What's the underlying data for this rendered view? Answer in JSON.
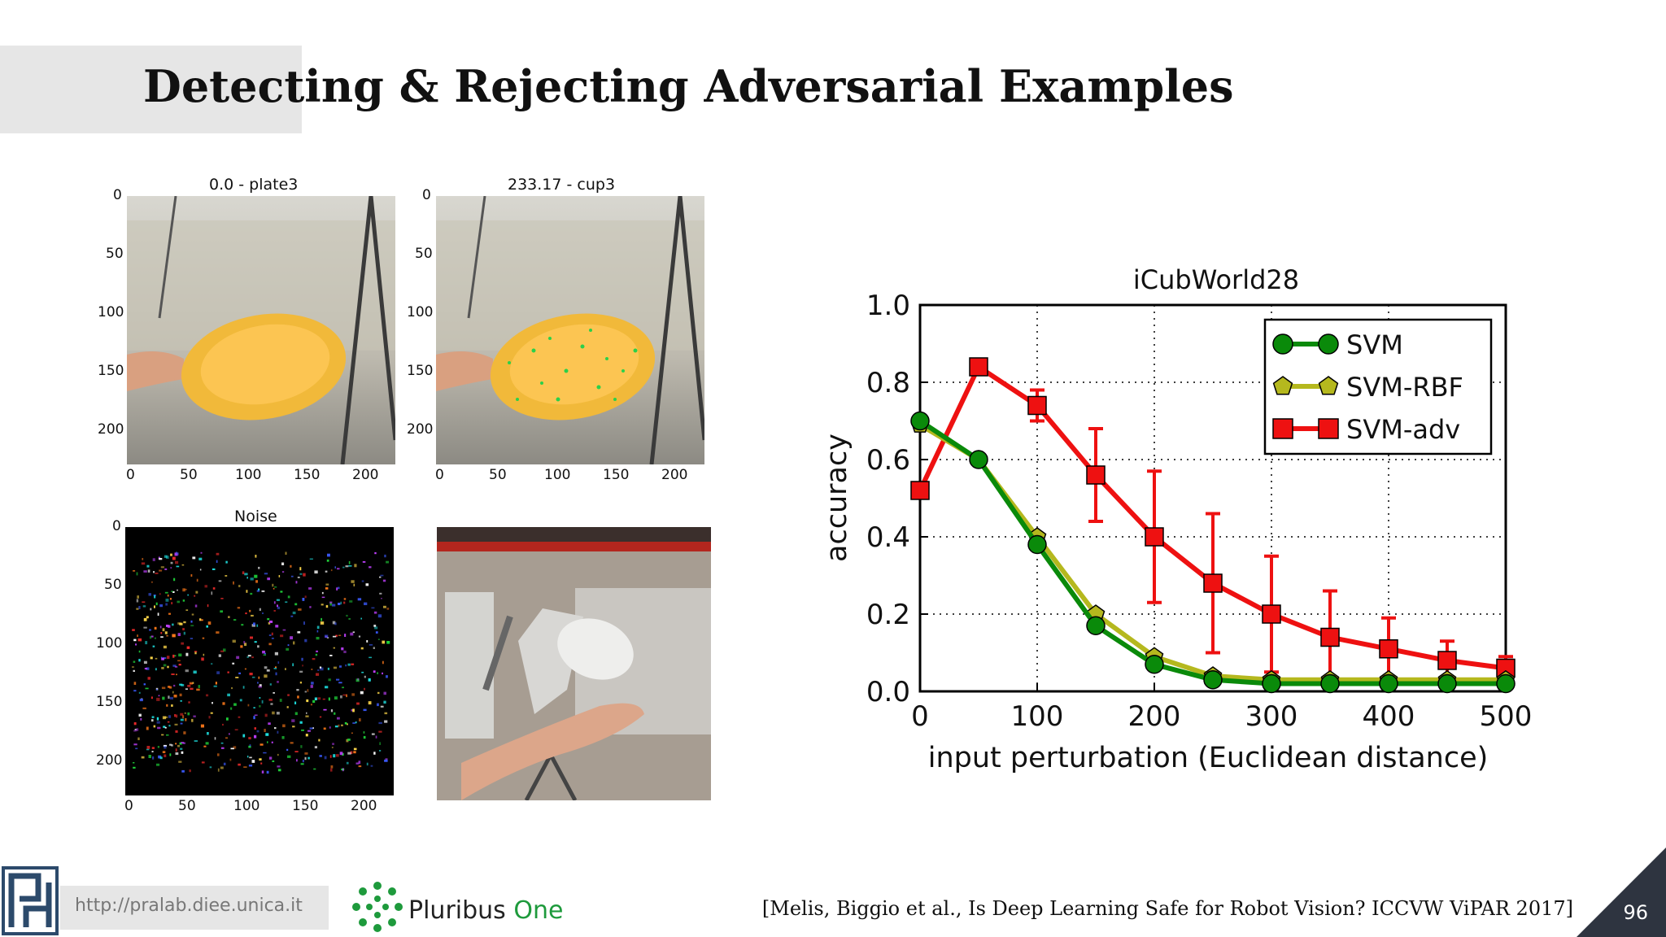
{
  "slide": {
    "title": "Detecting & Rejecting Adversarial Examples",
    "page_number": "96",
    "citation": "[Melis, Biggio et al., Is Deep Learning Safe for Robot Vision? ICCVW ViPAR 2017]",
    "footer_url": "http://pralab.diee.unica.it",
    "brand_name": "Pluribus ",
    "brand_accent": "One"
  },
  "images": {
    "original": {
      "label": "0.0 - plate3"
    },
    "adversarial": {
      "label": "233.17 - cup3"
    },
    "noise": {
      "label": "Noise"
    },
    "axis_ticks": [
      "0",
      "50",
      "100",
      "150",
      "200"
    ]
  },
  "chart_data": {
    "type": "line",
    "title": "iCubWorld28",
    "xlabel": "input perturbation (Euclidean distance)",
    "ylabel": "accuracy",
    "xlim": [
      0,
      500
    ],
    "ylim": [
      0,
      1.0
    ],
    "x_ticks": [
      0,
      100,
      200,
      300,
      400,
      500
    ],
    "y_ticks": [
      0.0,
      0.2,
      0.4,
      0.6,
      0.8,
      1.0
    ],
    "y_tick_labels": [
      "0.0",
      "0.2",
      "0.4",
      "0.6",
      "0.8",
      "1.0"
    ],
    "grid": true,
    "legend_position": "top-right",
    "x": [
      0,
      50,
      100,
      150,
      200,
      250,
      300,
      350,
      400,
      450,
      500
    ],
    "series": [
      {
        "name": "SVM",
        "color": "#0a8a0a",
        "marker": "circle",
        "values": [
          0.7,
          0.6,
          0.38,
          0.17,
          0.07,
          0.03,
          0.02,
          0.02,
          0.02,
          0.02,
          0.02
        ]
      },
      {
        "name": "SVM-RBF",
        "color": "#b5b81e",
        "marker": "pentagon",
        "values": [
          0.69,
          0.6,
          0.4,
          0.2,
          0.09,
          0.04,
          0.03,
          0.03,
          0.03,
          0.03,
          0.03
        ]
      },
      {
        "name": "SVM-adv",
        "color": "#ee1111",
        "marker": "square",
        "values": [
          0.52,
          0.84,
          0.74,
          0.56,
          0.4,
          0.28,
          0.2,
          0.14,
          0.11,
          0.08,
          0.06
        ],
        "error": [
          0.0,
          0.0,
          0.04,
          0.12,
          0.17,
          0.18,
          0.15,
          0.12,
          0.08,
          0.05,
          0.03
        ]
      }
    ]
  }
}
